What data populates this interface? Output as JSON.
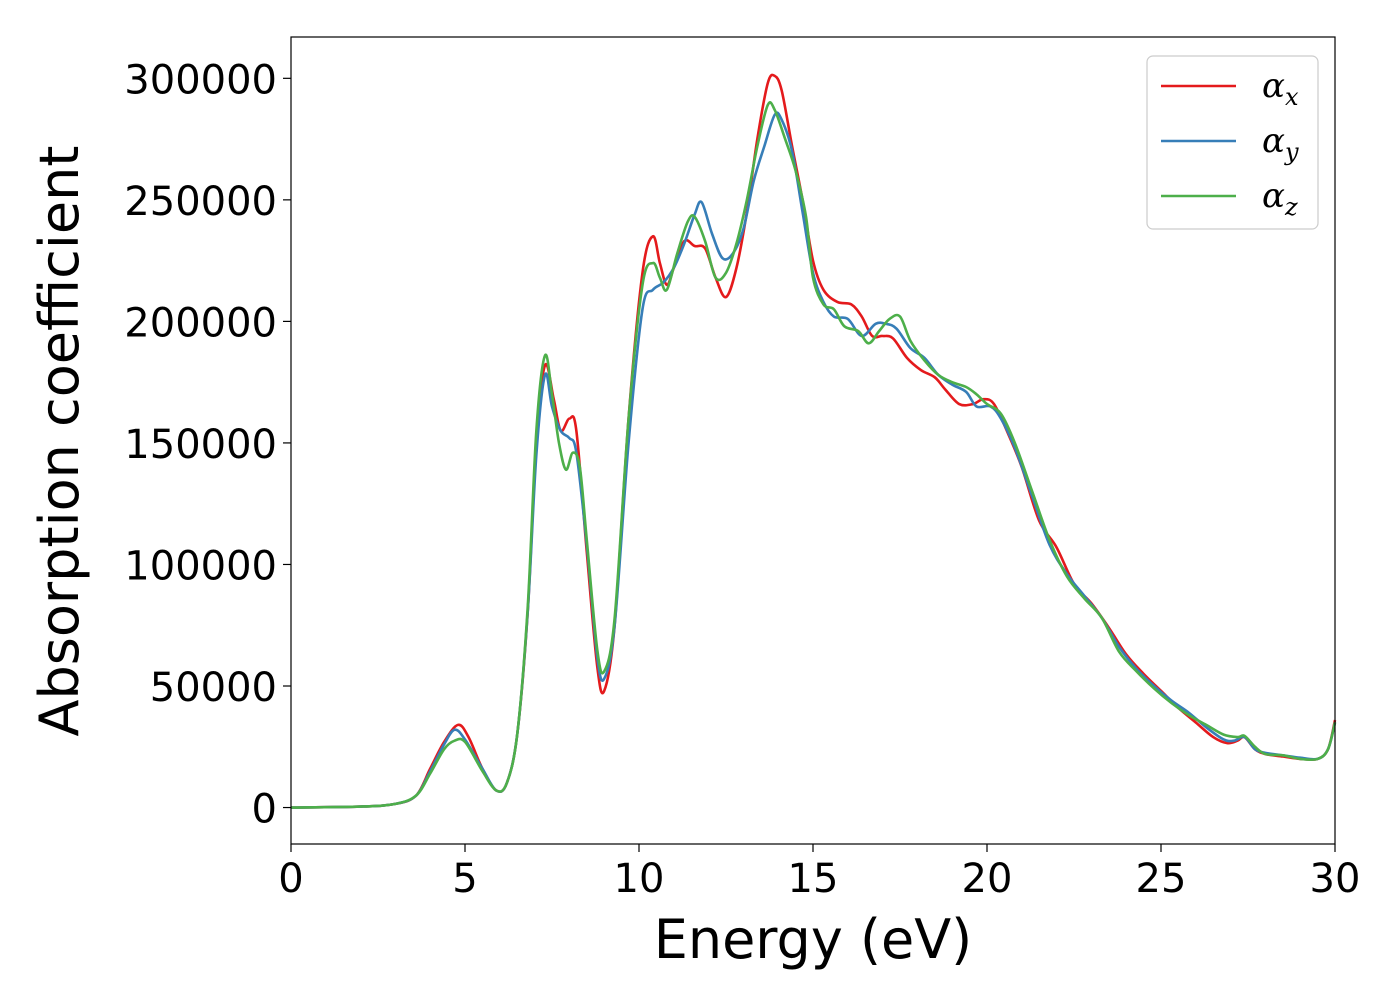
{
  "chart_data": {
    "type": "line",
    "title": "",
    "xlabel": "Energy (eV)",
    "ylabel": "Absorption coefficient",
    "xlim": [
      0,
      30
    ],
    "ylim": [
      -15000,
      317000
    ],
    "xticks": [
      0,
      5,
      10,
      15,
      20,
      25,
      30
    ],
    "yticks": [
      0,
      50000,
      100000,
      150000,
      200000,
      250000,
      300000
    ],
    "xtick_labels": [
      "0",
      "5",
      "10",
      "15",
      "20",
      "25",
      "30"
    ],
    "ytick_labels": [
      "0",
      "50000",
      "100000",
      "150000",
      "200000",
      "250000",
      "300000"
    ],
    "grid": false,
    "legend_position": "top-right",
    "series": [
      {
        "name": "α",
        "subscript": "x",
        "color": "#e41a1c",
        "points": [
          [
            0,
            0
          ],
          [
            2,
            400
          ],
          [
            3,
            1500
          ],
          [
            3.6,
            5000
          ],
          [
            4.0,
            16000
          ],
          [
            4.4,
            27000
          ],
          [
            4.8,
            34000
          ],
          [
            5.1,
            29000
          ],
          [
            5.5,
            16000
          ],
          [
            5.9,
            7000
          ],
          [
            6.2,
            10000
          ],
          [
            6.5,
            30000
          ],
          [
            6.8,
            80000
          ],
          [
            7.05,
            150000
          ],
          [
            7.3,
            182000
          ],
          [
            7.55,
            168000
          ],
          [
            7.75,
            155000
          ],
          [
            8.0,
            160000
          ],
          [
            8.2,
            155000
          ],
          [
            8.5,
            105000
          ],
          [
            8.8,
            58000
          ],
          [
            9.0,
            48000
          ],
          [
            9.3,
            75000
          ],
          [
            9.7,
            160000
          ],
          [
            10.1,
            220000
          ],
          [
            10.4,
            235000
          ],
          [
            10.6,
            224000
          ],
          [
            10.8,
            215000
          ],
          [
            11.0,
            222000
          ],
          [
            11.3,
            233000
          ],
          [
            11.6,
            231000
          ],
          [
            11.9,
            230000
          ],
          [
            12.2,
            218000
          ],
          [
            12.5,
            210000
          ],
          [
            12.8,
            222000
          ],
          [
            13.1,
            245000
          ],
          [
            13.4,
            275000
          ],
          [
            13.7,
            298000
          ],
          [
            13.9,
            301000
          ],
          [
            14.1,
            295000
          ],
          [
            14.4,
            272000
          ],
          [
            14.7,
            250000
          ],
          [
            15.0,
            225000
          ],
          [
            15.3,
            213000
          ],
          [
            15.7,
            208000
          ],
          [
            16.1,
            207000
          ],
          [
            16.4,
            202000
          ],
          [
            16.7,
            194000
          ],
          [
            17.0,
            194000
          ],
          [
            17.3,
            193000
          ],
          [
            17.7,
            185000
          ],
          [
            18.1,
            180000
          ],
          [
            18.5,
            177000
          ],
          [
            18.8,
            172000
          ],
          [
            19.2,
            166000
          ],
          [
            19.6,
            166000
          ],
          [
            19.9,
            168000
          ],
          [
            20.2,
            166000
          ],
          [
            20.6,
            154000
          ],
          [
            21.0,
            140000
          ],
          [
            21.5,
            118000
          ],
          [
            22.0,
            107000
          ],
          [
            22.5,
            92000
          ],
          [
            23.0,
            84000
          ],
          [
            23.5,
            74000
          ],
          [
            24.0,
            63000
          ],
          [
            24.5,
            55000
          ],
          [
            25.0,
            48000
          ],
          [
            25.5,
            41000
          ],
          [
            26.0,
            35000
          ],
          [
            26.5,
            29000
          ],
          [
            26.9,
            26500
          ],
          [
            27.2,
            27500
          ],
          [
            27.4,
            29000
          ],
          [
            27.7,
            24000
          ],
          [
            28.0,
            22000
          ],
          [
            28.5,
            21000
          ],
          [
            29.0,
            20000
          ],
          [
            29.5,
            20000
          ],
          [
            29.8,
            24000
          ],
          [
            30.0,
            36000
          ]
        ]
      },
      {
        "name": "α",
        "subscript": "y",
        "color": "#377eb8",
        "points": [
          [
            0,
            0
          ],
          [
            2,
            400
          ],
          [
            3,
            1500
          ],
          [
            3.6,
            5000
          ],
          [
            4.0,
            15000
          ],
          [
            4.4,
            26000
          ],
          [
            4.7,
            32000
          ],
          [
            5.0,
            28000
          ],
          [
            5.5,
            16000
          ],
          [
            5.9,
            7000
          ],
          [
            6.2,
            10000
          ],
          [
            6.5,
            30000
          ],
          [
            6.8,
            80000
          ],
          [
            7.05,
            145000
          ],
          [
            7.3,
            178000
          ],
          [
            7.5,
            165000
          ],
          [
            7.75,
            155000
          ],
          [
            8.0,
            152000
          ],
          [
            8.2,
            146000
          ],
          [
            8.5,
            108000
          ],
          [
            8.8,
            62000
          ],
          [
            9.0,
            53000
          ],
          [
            9.3,
            75000
          ],
          [
            9.7,
            150000
          ],
          [
            10.1,
            205000
          ],
          [
            10.4,
            213000
          ],
          [
            10.7,
            216000
          ],
          [
            11.0,
            222000
          ],
          [
            11.3,
            232000
          ],
          [
            11.6,
            244000
          ],
          [
            11.8,
            249000
          ],
          [
            12.1,
            236000
          ],
          [
            12.4,
            226000
          ],
          [
            12.7,
            228000
          ],
          [
            13.0,
            238000
          ],
          [
            13.3,
            258000
          ],
          [
            13.6,
            272000
          ],
          [
            13.9,
            285000
          ],
          [
            14.1,
            283000
          ],
          [
            14.4,
            270000
          ],
          [
            14.7,
            245000
          ],
          [
            15.0,
            220000
          ],
          [
            15.3,
            208000
          ],
          [
            15.6,
            202000
          ],
          [
            16.0,
            201000
          ],
          [
            16.4,
            194000
          ],
          [
            16.8,
            199000
          ],
          [
            17.1,
            199000
          ],
          [
            17.4,
            197000
          ],
          [
            17.8,
            189000
          ],
          [
            18.2,
            185000
          ],
          [
            18.6,
            178000
          ],
          [
            19.0,
            174000
          ],
          [
            19.4,
            171000
          ],
          [
            19.7,
            165000
          ],
          [
            20.1,
            165000
          ],
          [
            20.4,
            160000
          ],
          [
            20.8,
            148000
          ],
          [
            21.3,
            128000
          ],
          [
            21.8,
            108000
          ],
          [
            22.3,
            96000
          ],
          [
            22.8,
            87000
          ],
          [
            23.3,
            78000
          ],
          [
            23.8,
            66000
          ],
          [
            24.3,
            57000
          ],
          [
            24.8,
            50000
          ],
          [
            25.3,
            44000
          ],
          [
            25.8,
            39000
          ],
          [
            26.3,
            33000
          ],
          [
            26.8,
            28000
          ],
          [
            27.1,
            27500
          ],
          [
            27.4,
            29000
          ],
          [
            27.7,
            24000
          ],
          [
            28.0,
            22500
          ],
          [
            28.5,
            21500
          ],
          [
            29.0,
            20500
          ],
          [
            29.5,
            20000
          ],
          [
            29.8,
            24000
          ],
          [
            30.0,
            35000
          ]
        ]
      },
      {
        "name": "α",
        "subscript": "z",
        "color": "#4daf4a",
        "points": [
          [
            0,
            0
          ],
          [
            2,
            400
          ],
          [
            3,
            1500
          ],
          [
            3.6,
            5000
          ],
          [
            4.0,
            14000
          ],
          [
            4.4,
            24000
          ],
          [
            4.7,
            27500
          ],
          [
            5.0,
            27000
          ],
          [
            5.5,
            15000
          ],
          [
            5.9,
            7000
          ],
          [
            6.2,
            10000
          ],
          [
            6.5,
            30000
          ],
          [
            6.8,
            82000
          ],
          [
            7.05,
            155000
          ],
          [
            7.3,
            186000
          ],
          [
            7.5,
            170000
          ],
          [
            7.7,
            150000
          ],
          [
            7.9,
            139000
          ],
          [
            8.1,
            146000
          ],
          [
            8.3,
            140000
          ],
          [
            8.5,
            110000
          ],
          [
            8.8,
            65000
          ],
          [
            9.0,
            56000
          ],
          [
            9.3,
            78000
          ],
          [
            9.7,
            160000
          ],
          [
            10.1,
            215000
          ],
          [
            10.4,
            224000
          ],
          [
            10.6,
            218000
          ],
          [
            10.8,
            213000
          ],
          [
            11.1,
            228000
          ],
          [
            11.4,
            241000
          ],
          [
            11.6,
            243000
          ],
          [
            11.9,
            233000
          ],
          [
            12.2,
            218000
          ],
          [
            12.5,
            220000
          ],
          [
            12.8,
            232000
          ],
          [
            13.1,
            250000
          ],
          [
            13.4,
            272000
          ],
          [
            13.7,
            289000
          ],
          [
            13.9,
            287000
          ],
          [
            14.2,
            275000
          ],
          [
            14.5,
            262000
          ],
          [
            14.8,
            243000
          ],
          [
            15.0,
            218000
          ],
          [
            15.3,
            207000
          ],
          [
            15.6,
            205000
          ],
          [
            15.9,
            198000
          ],
          [
            16.3,
            196000
          ],
          [
            16.6,
            191000
          ],
          [
            16.9,
            196000
          ],
          [
            17.2,
            201000
          ],
          [
            17.5,
            202000
          ],
          [
            17.8,
            192000
          ],
          [
            18.2,
            184000
          ],
          [
            18.6,
            178000
          ],
          [
            19.0,
            175000
          ],
          [
            19.4,
            173000
          ],
          [
            19.7,
            170000
          ],
          [
            20.0,
            166000
          ],
          [
            20.4,
            162000
          ],
          [
            20.8,
            150000
          ],
          [
            21.3,
            130000
          ],
          [
            21.8,
            110000
          ],
          [
            22.3,
            95000
          ],
          [
            22.8,
            86000
          ],
          [
            23.3,
            78000
          ],
          [
            23.8,
            64000
          ],
          [
            24.3,
            56000
          ],
          [
            24.8,
            49000
          ],
          [
            25.3,
            43000
          ],
          [
            25.8,
            38000
          ],
          [
            26.3,
            34000
          ],
          [
            26.8,
            30000
          ],
          [
            27.2,
            29000
          ],
          [
            27.4,
            29500
          ],
          [
            27.7,
            25000
          ],
          [
            28.0,
            22000
          ],
          [
            28.5,
            21500
          ],
          [
            29.0,
            20000
          ],
          [
            29.5,
            20000
          ],
          [
            29.8,
            24000
          ],
          [
            30.0,
            35000
          ]
        ]
      }
    ]
  }
}
